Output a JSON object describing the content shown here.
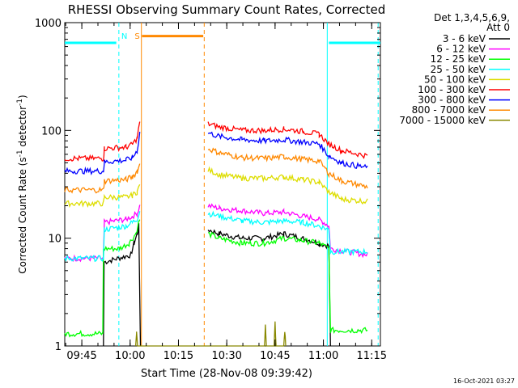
{
  "chart_data": {
    "type": "line",
    "title": "RHESSI Observing Summary Count Rates, Corrected",
    "xlabel": "Start Time (28-Nov-08 09:39:42)",
    "ylabel_main": "Corrected Count Rate (s",
    "ylabel_mid": " detector",
    "ylabel_end": ")",
    "ylabel_exp": "-1",
    "yscale": "log",
    "ylim": [
      1,
      1000
    ],
    "xlim_minutes": [
      0,
      98
    ],
    "x_ticks": [
      {
        "m": 5.3,
        "label": "09:45"
      },
      {
        "m": 20.3,
        "label": "10:00"
      },
      {
        "m": 35.3,
        "label": "10:15"
      },
      {
        "m": 50.3,
        "label": "10:30"
      },
      {
        "m": 65.3,
        "label": "10:45"
      },
      {
        "m": 80.3,
        "label": "11:00"
      },
      {
        "m": 95.3,
        "label": "11:15"
      }
    ],
    "y_ticks": [
      {
        "v": 1,
        "label": "1"
      },
      {
        "v": 10,
        "label": "10"
      },
      {
        "v": 100,
        "label": "100"
      },
      {
        "v": 1000,
        "label": "1000"
      }
    ],
    "legend_header": [
      "Det 1,3,4,5,6,9,",
      "Att 0"
    ],
    "legend_position": "right",
    "series": [
      {
        "name": "3 - 6 keV",
        "color": "#000000",
        "points": [
          [
            12,
            1
          ],
          [
            12.2,
            6
          ],
          [
            20.5,
            7
          ],
          [
            21.5,
            9
          ],
          [
            22.5,
            11
          ],
          [
            23,
            13
          ],
          [
            23.5,
            1
          ]
        ],
        "points2": [
          [
            44.5,
            12
          ],
          [
            48,
            11
          ],
          [
            55,
            10
          ],
          [
            62,
            10
          ],
          [
            68,
            11
          ],
          [
            74,
            10
          ],
          [
            79,
            9
          ],
          [
            82,
            8.5
          ],
          [
            82.5,
            1
          ]
        ]
      },
      {
        "name": "6 - 12 keV",
        "color": "#ff00ff",
        "points": [
          [
            0,
            6.5
          ],
          [
            12,
            6.5
          ],
          [
            12.3,
            14
          ],
          [
            19,
            15
          ],
          [
            21,
            16
          ],
          [
            22.5,
            17
          ],
          [
            23.3,
            20
          ]
        ],
        "points2": [
          [
            44.5,
            20
          ],
          [
            48,
            19
          ],
          [
            55,
            18
          ],
          [
            62,
            17
          ],
          [
            68,
            17.5
          ],
          [
            74,
            16
          ],
          [
            79,
            15
          ],
          [
            82,
            13
          ],
          [
            82.5,
            8
          ],
          [
            94,
            7
          ]
        ]
      },
      {
        "name": "12 - 25 keV",
        "color": "#00ff00",
        "points": [
          [
            0,
            1.3
          ],
          [
            11.8,
            1.3
          ],
          [
            12,
            8
          ],
          [
            17,
            8
          ],
          [
            20,
            9
          ],
          [
            22,
            11
          ],
          [
            23.3,
            15
          ]
        ],
        "points2": [
          [
            44.5,
            11
          ],
          [
            48,
            10
          ],
          [
            55,
            9
          ],
          [
            62,
            9
          ],
          [
            68,
            10
          ],
          [
            74,
            9.5
          ],
          [
            79,
            9
          ],
          [
            82,
            8
          ],
          [
            82.5,
            1.4
          ],
          [
            94,
            1.4
          ]
        ]
      },
      {
        "name": "25 - 50 keV",
        "color": "#00ffff",
        "points": [
          [
            0,
            6.5
          ],
          [
            12,
            6.5
          ],
          [
            12.3,
            12
          ],
          [
            19,
            13
          ],
          [
            21,
            14
          ],
          [
            22.5,
            15
          ],
          [
            23.3,
            18
          ]
        ],
        "points2": [
          [
            44.5,
            17
          ],
          [
            48,
            16
          ],
          [
            55,
            14.5
          ],
          [
            62,
            14
          ],
          [
            68,
            14.5
          ],
          [
            74,
            14
          ],
          [
            79,
            13
          ],
          [
            82,
            12
          ],
          [
            82.5,
            7.5
          ],
          [
            94,
            7.5
          ]
        ]
      },
      {
        "name": "50 - 100 keV",
        "color": "#dddd00",
        "points": [
          [
            0,
            21
          ],
          [
            12,
            21
          ],
          [
            12.3,
            24
          ],
          [
            19,
            24
          ],
          [
            21,
            25
          ],
          [
            22.5,
            27
          ],
          [
            23.3,
            31
          ]
        ],
        "points2": [
          [
            44.5,
            43
          ],
          [
            48,
            39
          ],
          [
            55,
            36
          ],
          [
            62,
            36
          ],
          [
            68,
            37
          ],
          [
            74,
            35
          ],
          [
            79,
            33
          ],
          [
            82,
            27
          ],
          [
            86,
            23
          ],
          [
            94,
            22
          ]
        ]
      },
      {
        "name": "100 - 300 keV",
        "color": "#ff0000",
        "points": [
          [
            0,
            55
          ],
          [
            12,
            55
          ],
          [
            12.3,
            68
          ],
          [
            19,
            70
          ],
          [
            21,
            74
          ],
          [
            22.5,
            85
          ],
          [
            23.3,
            120
          ]
        ],
        "points2": [
          [
            44.5,
            115
          ],
          [
            48,
            108
          ],
          [
            55,
            100
          ],
          [
            62,
            100
          ],
          [
            68,
            103
          ],
          [
            74,
            98
          ],
          [
            79,
            92
          ],
          [
            82,
            75
          ],
          [
            86,
            65
          ],
          [
            94,
            58
          ]
        ]
      },
      {
        "name": "300 - 800 keV",
        "color": "#0000ff",
        "points": [
          [
            0,
            42
          ],
          [
            12,
            42
          ],
          [
            12.3,
            51
          ],
          [
            19,
            53
          ],
          [
            21,
            56
          ],
          [
            22.5,
            65
          ],
          [
            23.3,
            95
          ]
        ],
        "points2": [
          [
            44.5,
            95
          ],
          [
            48,
            88
          ],
          [
            55,
            82
          ],
          [
            62,
            80
          ],
          [
            68,
            82
          ],
          [
            74,
            78
          ],
          [
            79,
            75
          ],
          [
            82,
            58
          ],
          [
            86,
            50
          ],
          [
            94,
            45
          ]
        ]
      },
      {
        "name": "800 - 7000 keV",
        "color": "#ff8800",
        "points": [
          [
            0,
            28
          ],
          [
            12,
            28
          ],
          [
            12.3,
            34
          ],
          [
            19,
            35
          ],
          [
            21,
            37
          ],
          [
            22.5,
            42
          ],
          [
            23.3,
            48
          ]
        ],
        "points2": [
          [
            44.5,
            68
          ],
          [
            48,
            62
          ],
          [
            55,
            56
          ],
          [
            62,
            55
          ],
          [
            68,
            57
          ],
          [
            74,
            54
          ],
          [
            79,
            52
          ],
          [
            82,
            40
          ],
          [
            86,
            34
          ],
          [
            94,
            30
          ]
        ]
      },
      {
        "name": "7000 - 15000 keV",
        "color": "#888800",
        "points": [
          [
            22,
            1
          ],
          [
            22.3,
            1.3
          ],
          [
            22.6,
            1
          ],
          [
            62,
            1
          ],
          [
            62.3,
            1.5
          ],
          [
            62.6,
            1
          ],
          [
            65,
            1
          ],
          [
            65.3,
            1.6
          ],
          [
            65.6,
            1
          ],
          [
            68,
            1
          ],
          [
            68.3,
            1.4
          ],
          [
            68.6,
            1
          ]
        ],
        "points2": []
      }
    ],
    "attenuator_segments": [
      {
        "label": "",
        "color": "#00ffff",
        "from": 0,
        "to": 16,
        "level": 650
      },
      {
        "label": "S",
        "color": "#ff8800",
        "from": 24,
        "to": 43,
        "level": 750
      },
      {
        "label": "",
        "color": "#00ffff",
        "from": 82,
        "to": 98,
        "level": 650
      }
    ],
    "annotations": [
      {
        "text": "N",
        "color": "#00ffff",
        "m": 18.5
      },
      {
        "text": "S",
        "color": "#ff8800",
        "m": 22.5
      }
    ],
    "vlines": [
      {
        "m": 16.8,
        "color": "#00ffff",
        "dash": true
      },
      {
        "m": 23.8,
        "color": "#ff8800",
        "dash": false
      },
      {
        "m": 43.3,
        "color": "#ff8800",
        "dash": true
      },
      {
        "m": 81.5,
        "color": "#00ffff",
        "dash": false
      },
      {
        "m": 97.3,
        "color": "#00ffff",
        "dash": true
      }
    ],
    "footer": "16-Oct-2021 03:27"
  }
}
